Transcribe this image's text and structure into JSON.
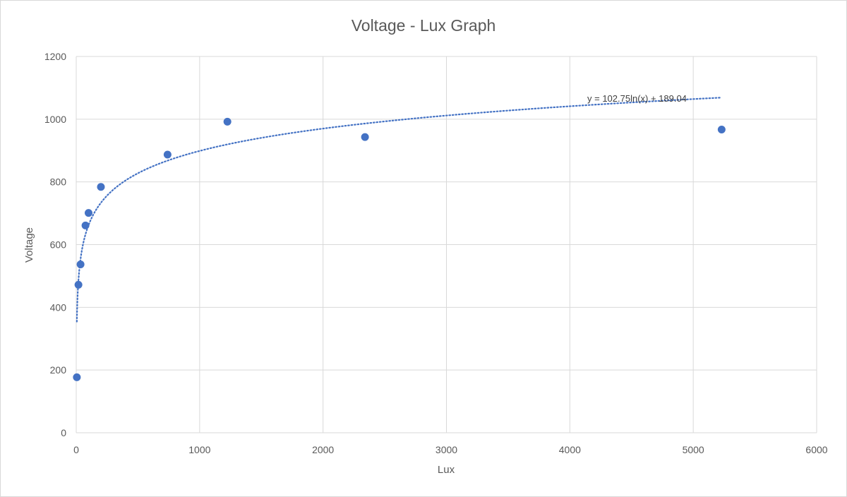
{
  "chart_data": {
    "type": "scatter",
    "title": "Voltage - Lux Graph",
    "xlabel": "Lux",
    "ylabel": "Voltage",
    "xlim": [
      0,
      6000
    ],
    "ylim": [
      0,
      1200
    ],
    "x_ticks": [
      0,
      1000,
      2000,
      3000,
      4000,
      5000,
      6000
    ],
    "y_ticks": [
      0,
      200,
      400,
      600,
      800,
      1000,
      1200
    ],
    "grid": true,
    "legend": "none",
    "series": [
      {
        "points": [
          {
            "x": 5,
            "y": 177
          },
          {
            "x": 18,
            "y": 472
          },
          {
            "x": 35,
            "y": 537
          },
          {
            "x": 75,
            "y": 661
          },
          {
            "x": 100,
            "y": 701
          },
          {
            "x": 200,
            "y": 784
          },
          {
            "x": 740,
            "y": 887
          },
          {
            "x": 1225,
            "y": 992
          },
          {
            "x": 2340,
            "y": 943
          },
          {
            "x": 5230,
            "y": 967
          }
        ],
        "color": "#4472c4"
      }
    ],
    "trendline": {
      "type": "logarithmic",
      "a": 102.75,
      "b": 189.04,
      "x_start": 5,
      "x_end": 5220,
      "color": "#4472c4",
      "style": "dotted",
      "equation_label": "y = 102.75ln(x) + 189.04"
    }
  },
  "colors": {
    "gridline": "#d9d9d9",
    "text": "#595959",
    "marker": "#4472c4"
  }
}
